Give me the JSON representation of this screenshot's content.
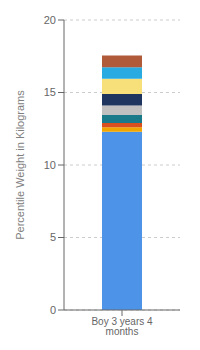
{
  "chart_data": {
    "type": "bar",
    "stacked": true,
    "categories": [
      "Boy 3 years 4 months"
    ],
    "ylabel": "Percentile Weight in Kilograms",
    "ylim": [
      0,
      20
    ],
    "yticks": [
      0,
      5,
      10,
      15,
      20
    ],
    "grid": true,
    "series": [
      {
        "color": "#4d94e8",
        "values": [
          12.3
        ]
      },
      {
        "color": "#f0a500",
        "values": [
          0.3
        ]
      },
      {
        "color": "#d94f1e",
        "values": [
          0.3
        ]
      },
      {
        "color": "#1a7a8a",
        "values": [
          0.55
        ]
      },
      {
        "color": "#c0c0c0",
        "values": [
          0.65
        ]
      },
      {
        "color": "#1e3560",
        "values": [
          0.8
        ]
      },
      {
        "color": "#f7e07a",
        "values": [
          1.05
        ]
      },
      {
        "color": "#29aae1",
        "values": [
          0.8
        ]
      },
      {
        "color": "#b05a3a",
        "values": [
          0.8
        ]
      }
    ]
  }
}
